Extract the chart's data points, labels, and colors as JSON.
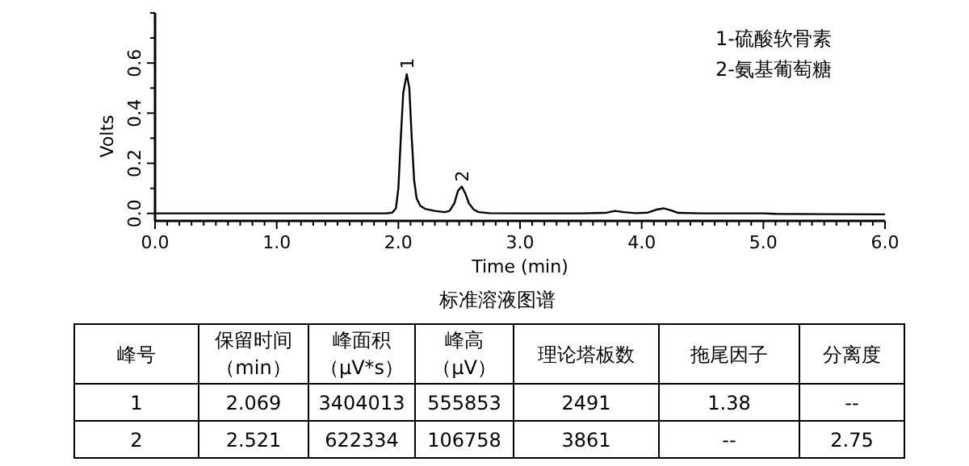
{
  "chart_data": {
    "type": "line",
    "title": "标准溶液图谱",
    "xlabel": "Time (min)",
    "ylabel": "Volts",
    "xlim": [
      0,
      6
    ],
    "ylim": [
      -0.03,
      0.8
    ],
    "xticks": [
      {
        "value": 0,
        "label": "0.0"
      },
      {
        "value": 0.1,
        "label": null
      },
      {
        "value": 0.2,
        "label": null
      },
      {
        "value": 0.3,
        "label": null
      },
      {
        "value": 0.4,
        "label": null
      },
      {
        "value": 0.5,
        "label": null
      },
      {
        "value": 0.6,
        "label": null
      },
      {
        "value": 0.7,
        "label": null
      },
      {
        "value": 0.8,
        "label": null
      },
      {
        "value": 0.9,
        "label": null
      },
      {
        "value": 1,
        "label": "1.0"
      },
      {
        "value": 1.1,
        "label": null
      },
      {
        "value": 1.2,
        "label": null
      },
      {
        "value": 1.3,
        "label": null
      },
      {
        "value": 1.4,
        "label": null
      },
      {
        "value": 1.5,
        "label": null
      },
      {
        "value": 1.6,
        "label": null
      },
      {
        "value": 1.7,
        "label": null
      },
      {
        "value": 1.8,
        "label": null
      },
      {
        "value": 1.9,
        "label": null
      },
      {
        "value": 2,
        "label": "2.0"
      },
      {
        "value": 2.1,
        "label": null
      },
      {
        "value": 2.2,
        "label": null
      },
      {
        "value": 2.3,
        "label": null
      },
      {
        "value": 2.4,
        "label": null
      },
      {
        "value": 2.5,
        "label": null
      },
      {
        "value": 2.6,
        "label": null
      },
      {
        "value": 2.7,
        "label": null
      },
      {
        "value": 2.8,
        "label": null
      },
      {
        "value": 2.9,
        "label": null
      },
      {
        "value": 3,
        "label": "3.0"
      },
      {
        "value": 3.1,
        "label": null
      },
      {
        "value": 3.2,
        "label": null
      },
      {
        "value": 3.3,
        "label": null
      },
      {
        "value": 3.4,
        "label": null
      },
      {
        "value": 3.5,
        "label": null
      },
      {
        "value": 3.6,
        "label": null
      },
      {
        "value": 3.7,
        "label": null
      },
      {
        "value": 3.8,
        "label": null
      },
      {
        "value": 3.9,
        "label": null
      },
      {
        "value": 4,
        "label": "4.0"
      },
      {
        "value": 4.1,
        "label": null
      },
      {
        "value": 4.2,
        "label": null
      },
      {
        "value": 4.3,
        "label": null
      },
      {
        "value": 4.4,
        "label": null
      },
      {
        "value": 4.5,
        "label": null
      },
      {
        "value": 4.6,
        "label": null
      },
      {
        "value": 4.7,
        "label": null
      },
      {
        "value": 4.8,
        "label": null
      },
      {
        "value": 4.9,
        "label": null
      },
      {
        "value": 5,
        "label": "5.0"
      },
      {
        "value": 5.1,
        "label": null
      },
      {
        "value": 5.2,
        "label": null
      },
      {
        "value": 5.3,
        "label": null
      },
      {
        "value": 5.4,
        "label": null
      },
      {
        "value": 5.5,
        "label": null
      },
      {
        "value": 5.6,
        "label": null
      },
      {
        "value": 5.7,
        "label": null
      },
      {
        "value": 5.8,
        "label": null
      },
      {
        "value": 5.9,
        "label": null
      },
      {
        "value": 6,
        "label": "6.0"
      }
    ],
    "yticks": [
      {
        "value": 0,
        "label": "0.0"
      },
      {
        "value": 0.1,
        "label": null
      },
      {
        "value": 0.2,
        "label": "0.2"
      },
      {
        "value": 0.3,
        "label": null
      },
      {
        "value": 0.4,
        "label": "0.4"
      },
      {
        "value": 0.5,
        "label": null
      },
      {
        "value": 0.6,
        "label": "0.6"
      },
      {
        "value": 0.7,
        "label": null
      },
      {
        "value": 0.8,
        "label": null
      }
    ],
    "grid": false,
    "marker": "none",
    "line_style": "solid",
    "x": [
      0,
      1.9,
      1.95,
      1.98,
      2.0,
      2.02,
      2.04,
      2.069,
      2.09,
      2.11,
      2.13,
      2.15,
      2.18,
      2.22,
      2.3,
      2.38,
      2.42,
      2.46,
      2.49,
      2.521,
      2.55,
      2.58,
      2.62,
      2.66,
      2.75,
      3.0,
      3.5,
      3.7,
      3.78,
      3.85,
      3.95,
      4.05,
      4.12,
      4.18,
      4.24,
      4.3,
      4.5,
      5.0,
      5.1,
      5.5,
      6.0
    ],
    "series": [
      {
        "color": "#000000",
        "values": [
          0,
          0,
          0.003,
          0.02,
          0.1,
          0.3,
          0.48,
          0.556,
          0.5,
          0.3,
          0.13,
          0.06,
          0.03,
          0.018,
          0.01,
          0.005,
          0.01,
          0.04,
          0.09,
          0.107,
          0.08,
          0.04,
          0.015,
          0.005,
          0.001,
          0,
          0,
          0.002,
          0.01,
          0.005,
          0.001,
          0.003,
          0.015,
          0.02,
          0.012,
          0.002,
          0,
          0,
          -0.002,
          -0.003,
          -0.004
        ]
      }
    ],
    "annotations": [
      {
        "text": "1",
        "x": 2.069,
        "y": 0.556
      },
      {
        "text": "2",
        "x": 2.521,
        "y": 0.107
      },
      "1-硫酸软骨素",
      "2-氨基葡萄糖",
      "峰号",
      "保留时间",
      "峰面积",
      "峰高",
      "理论塔板数",
      "拖尾因子",
      "分离度",
      "（min）",
      "（μV*s）",
      "（μV）",
      "1",
      "2.069",
      "3404013",
      "555853",
      "2491",
      "1.38",
      "--",
      "2",
      "2.521",
      "622334",
      "106758",
      "3861",
      "--",
      "2.75"
    ]
  }
}
